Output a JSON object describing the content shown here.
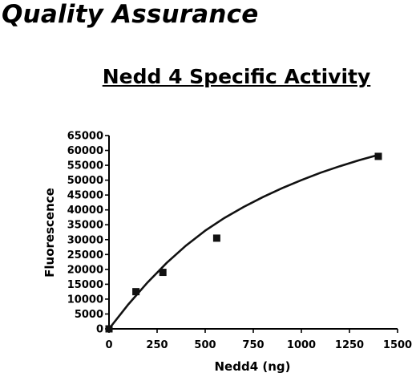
{
  "page": {
    "heading": "Quality Assurance"
  },
  "chart_data": {
    "type": "scatter",
    "title": "Nedd 4 Specific Activity",
    "xlabel": "Nedd4 (ng)",
    "ylabel": "Fluorescence",
    "xlim": [
      0,
      1500
    ],
    "ylim": [
      0,
      65000
    ],
    "xticks": [
      0,
      250,
      500,
      750,
      1000,
      1250,
      1500
    ],
    "yticks": [
      0,
      5000,
      10000,
      15000,
      20000,
      25000,
      30000,
      35000,
      40000,
      45000,
      50000,
      55000,
      60000,
      65000
    ],
    "grid": false,
    "series": [
      {
        "marker": "square",
        "color": "#111111",
        "points": [
          {
            "x": 0,
            "y": 0
          },
          {
            "x": 140,
            "y": 12500
          },
          {
            "x": 280,
            "y": 19000
          },
          {
            "x": 560,
            "y": 30500
          },
          {
            "x": 1400,
            "y": 58000
          }
        ]
      }
    ],
    "fit_curve": {
      "color": "#111111",
      "points": [
        {
          "x": 0,
          "y": 0
        },
        {
          "x": 100,
          "y": 8200
        },
        {
          "x": 200,
          "y": 15600
        },
        {
          "x": 300,
          "y": 22200
        },
        {
          "x": 400,
          "y": 28000
        },
        {
          "x": 500,
          "y": 33000
        },
        {
          "x": 600,
          "y": 37300
        },
        {
          "x": 700,
          "y": 41000
        },
        {
          "x": 800,
          "y": 44300
        },
        {
          "x": 900,
          "y": 47300
        },
        {
          "x": 1000,
          "y": 50000
        },
        {
          "x": 1100,
          "y": 52500
        },
        {
          "x": 1200,
          "y": 54700
        },
        {
          "x": 1300,
          "y": 56700
        },
        {
          "x": 1400,
          "y": 58500
        }
      ]
    }
  }
}
